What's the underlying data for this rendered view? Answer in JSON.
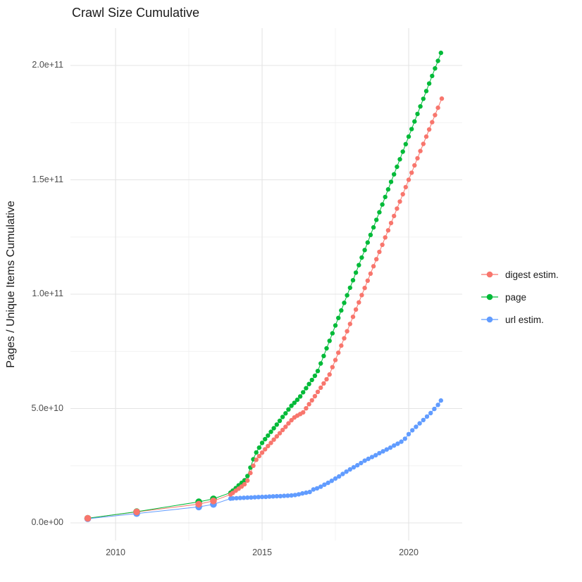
{
  "chart_data": {
    "type": "line",
    "title": "Crawl Size Cumulative",
    "ylabel": "Pages / Unique Items Cumulative",
    "xlabel": "",
    "values_unit": "billions (1e9 items)",
    "grid": true,
    "legend_position": "right",
    "xlim": [
      2008.45,
      2021.8
    ],
    "ylim_billions": [
      -8,
      216
    ],
    "x_ticks": [
      {
        "year": 2010,
        "label": "2010"
      },
      {
        "year": 2015,
        "label": "2015"
      },
      {
        "year": 2020,
        "label": "2020"
      }
    ],
    "x_minor_ticks": [
      2012.5,
      2017.5
    ],
    "y_ticks": [
      {
        "value": 0,
        "label": "0.0e+00"
      },
      {
        "value": 50,
        "label": "5.0e+10"
      },
      {
        "value": 100,
        "label": "1.0e+11"
      },
      {
        "value": 150,
        "label": "1.5e+11"
      },
      {
        "value": 200,
        "label": "2.0e+11"
      }
    ],
    "y_minor_values": [
      25,
      75,
      125,
      175
    ],
    "series": [
      {
        "name": "digest estim.",
        "color": "#F8766D",
        "points": [
          [
            2009.05,
            2
          ],
          [
            2010.72,
            4.8
          ],
          [
            2012.84,
            8.2
          ],
          [
            2013.34,
            9.6
          ],
          [
            2013.92,
            12.4
          ],
          [
            2014.0,
            13.1
          ],
          [
            2014.1,
            14.1
          ],
          [
            2014.2,
            15.0
          ],
          [
            2014.3,
            15.9
          ],
          [
            2014.4,
            16.9
          ],
          [
            2014.5,
            18.5
          ],
          [
            2014.6,
            21.8
          ],
          [
            2014.7,
            25.0
          ],
          [
            2014.8,
            27.6
          ],
          [
            2014.9,
            29.2
          ],
          [
            2015.0,
            30.7
          ],
          [
            2015.1,
            32.2
          ],
          [
            2015.2,
            33.6
          ],
          [
            2015.3,
            35.0
          ],
          [
            2015.4,
            36.4
          ],
          [
            2015.5,
            37.8
          ],
          [
            2015.6,
            39.2
          ],
          [
            2015.7,
            40.6
          ],
          [
            2015.8,
            42.0
          ],
          [
            2015.9,
            43.5
          ],
          [
            2016.0,
            44.9
          ],
          [
            2016.1,
            46.1
          ],
          [
            2016.2,
            46.9
          ],
          [
            2016.3,
            47.6
          ],
          [
            2016.4,
            48.3
          ],
          [
            2016.5,
            50.1
          ],
          [
            2016.6,
            51.9
          ],
          [
            2016.7,
            53.6
          ],
          [
            2016.8,
            55.4
          ],
          [
            2016.9,
            57.3
          ],
          [
            2017.0,
            59.1
          ],
          [
            2017.1,
            61.0
          ],
          [
            2017.2,
            62.8
          ],
          [
            2017.3,
            64.9
          ],
          [
            2017.4,
            68.1
          ],
          [
            2017.5,
            71.2
          ],
          [
            2017.6,
            74.4
          ],
          [
            2017.7,
            77.5
          ],
          [
            2017.8,
            80.7
          ],
          [
            2017.9,
            83.8
          ],
          [
            2018.0,
            87.0
          ],
          [
            2018.1,
            90.1
          ],
          [
            2018.2,
            93.3
          ],
          [
            2018.3,
            96.4
          ],
          [
            2018.4,
            99.6
          ],
          [
            2018.5,
            102.7
          ],
          [
            2018.6,
            105.9
          ],
          [
            2018.7,
            109.0
          ],
          [
            2018.8,
            112.2
          ],
          [
            2018.9,
            115.3
          ],
          [
            2019.0,
            118.5
          ],
          [
            2019.1,
            121.6
          ],
          [
            2019.2,
            124.8
          ],
          [
            2019.3,
            127.9
          ],
          [
            2019.4,
            131.1
          ],
          [
            2019.5,
            134.2
          ],
          [
            2019.6,
            137.4
          ],
          [
            2019.7,
            140.5
          ],
          [
            2019.8,
            143.7
          ],
          [
            2019.9,
            146.8
          ],
          [
            2020.0,
            150.0
          ],
          [
            2020.1,
            153.1
          ],
          [
            2020.2,
            156.3
          ],
          [
            2020.3,
            159.4
          ],
          [
            2020.4,
            162.6
          ],
          [
            2020.5,
            165.7
          ],
          [
            2020.6,
            168.9
          ],
          [
            2020.7,
            172.0
          ],
          [
            2020.8,
            175.2
          ],
          [
            2020.9,
            178.3
          ],
          [
            2021.0,
            181.5
          ],
          [
            2021.13,
            185.5
          ]
        ]
      },
      {
        "name": "page",
        "color": "#00BA38",
        "points": [
          [
            2009.05,
            2
          ],
          [
            2010.72,
            4.9
          ],
          [
            2012.84,
            9.2
          ],
          [
            2013.34,
            10.5
          ],
          [
            2013.92,
            13.2
          ],
          [
            2014.0,
            14.1
          ],
          [
            2014.1,
            15.2
          ],
          [
            2014.2,
            16.4
          ],
          [
            2014.3,
            17.5
          ],
          [
            2014.4,
            18.6
          ],
          [
            2014.5,
            20.5
          ],
          [
            2014.6,
            24.2
          ],
          [
            2014.7,
            27.8
          ],
          [
            2014.8,
            30.8
          ],
          [
            2014.9,
            32.9
          ],
          [
            2015.0,
            35.0
          ],
          [
            2015.1,
            36.6
          ],
          [
            2015.2,
            38.2
          ],
          [
            2015.3,
            39.8
          ],
          [
            2015.4,
            41.4
          ],
          [
            2015.5,
            43.0
          ],
          [
            2015.6,
            44.6
          ],
          [
            2015.7,
            46.3
          ],
          [
            2015.8,
            47.9
          ],
          [
            2015.9,
            49.6
          ],
          [
            2016.0,
            51.2
          ],
          [
            2016.1,
            52.5
          ],
          [
            2016.2,
            53.8
          ],
          [
            2016.3,
            55.3
          ],
          [
            2016.4,
            57.1
          ],
          [
            2016.5,
            58.9
          ],
          [
            2016.6,
            60.7
          ],
          [
            2016.7,
            62.5
          ],
          [
            2016.8,
            64.3
          ],
          [
            2016.9,
            66.4
          ],
          [
            2017.0,
            69.7
          ],
          [
            2017.1,
            73.0
          ],
          [
            2017.2,
            76.3
          ],
          [
            2017.3,
            79.6
          ],
          [
            2017.4,
            82.9
          ],
          [
            2017.5,
            86.3
          ],
          [
            2017.6,
            89.6
          ],
          [
            2017.7,
            92.9
          ],
          [
            2017.8,
            96.2
          ],
          [
            2017.9,
            99.5
          ],
          [
            2018.0,
            102.8
          ],
          [
            2018.1,
            106.1
          ],
          [
            2018.2,
            109.4
          ],
          [
            2018.3,
            112.7
          ],
          [
            2018.4,
            116.0
          ],
          [
            2018.5,
            119.3
          ],
          [
            2018.6,
            122.6
          ],
          [
            2018.7,
            125.9
          ],
          [
            2018.8,
            129.2
          ],
          [
            2018.9,
            132.5
          ],
          [
            2019.0,
            135.8
          ],
          [
            2019.1,
            139.2
          ],
          [
            2019.2,
            142.5
          ],
          [
            2019.3,
            145.8
          ],
          [
            2019.4,
            149.1
          ],
          [
            2019.5,
            152.4
          ],
          [
            2019.6,
            155.7
          ],
          [
            2019.7,
            159.0
          ],
          [
            2019.8,
            162.3
          ],
          [
            2019.9,
            165.6
          ],
          [
            2020.0,
            168.9
          ],
          [
            2020.1,
            172.2
          ],
          [
            2020.2,
            175.5
          ],
          [
            2020.3,
            178.8
          ],
          [
            2020.4,
            182.1
          ],
          [
            2020.5,
            185.4
          ],
          [
            2020.6,
            188.8
          ],
          [
            2020.7,
            192.1
          ],
          [
            2020.8,
            195.4
          ],
          [
            2020.9,
            198.7
          ],
          [
            2021.0,
            202.0
          ],
          [
            2021.1,
            205.5
          ]
        ]
      },
      {
        "name": "url estim.",
        "color": "#619CFF",
        "points": [
          [
            2009.05,
            1.8
          ],
          [
            2010.72,
            4.1
          ],
          [
            2012.84,
            7.0
          ],
          [
            2013.34,
            8.1
          ],
          [
            2013.92,
            10.6
          ],
          [
            2014.0,
            10.7
          ],
          [
            2014.125,
            10.8
          ],
          [
            2014.25,
            10.9
          ],
          [
            2014.375,
            11.0
          ],
          [
            2014.5,
            11.05
          ],
          [
            2014.625,
            11.1
          ],
          [
            2014.75,
            11.2
          ],
          [
            2014.875,
            11.3
          ],
          [
            2015.0,
            11.35
          ],
          [
            2015.125,
            11.4
          ],
          [
            2015.25,
            11.5
          ],
          [
            2015.375,
            11.6
          ],
          [
            2015.5,
            11.65
          ],
          [
            2015.625,
            11.7
          ],
          [
            2015.75,
            11.8
          ],
          [
            2015.875,
            11.9
          ],
          [
            2016.0,
            12.0
          ],
          [
            2016.125,
            12.2
          ],
          [
            2016.25,
            12.5
          ],
          [
            2016.375,
            12.9
          ],
          [
            2016.5,
            13.2
          ],
          [
            2016.625,
            13.5
          ],
          [
            2016.75,
            14.6
          ],
          [
            2016.875,
            15.1
          ],
          [
            2017.0,
            15.8
          ],
          [
            2017.125,
            16.7
          ],
          [
            2017.25,
            17.5
          ],
          [
            2017.375,
            18.4
          ],
          [
            2017.5,
            19.4
          ],
          [
            2017.625,
            20.3
          ],
          [
            2017.75,
            21.4
          ],
          [
            2017.875,
            22.4
          ],
          [
            2018.0,
            23.4
          ],
          [
            2018.125,
            24.3
          ],
          [
            2018.25,
            25.2
          ],
          [
            2018.375,
            26.2
          ],
          [
            2018.5,
            27.2
          ],
          [
            2018.625,
            28.0
          ],
          [
            2018.75,
            28.8
          ],
          [
            2018.875,
            29.6
          ],
          [
            2019.0,
            30.5
          ],
          [
            2019.125,
            31.3
          ],
          [
            2019.25,
            32.1
          ],
          [
            2019.375,
            32.9
          ],
          [
            2019.5,
            33.8
          ],
          [
            2019.625,
            34.6
          ],
          [
            2019.75,
            35.5
          ],
          [
            2019.875,
            36.8
          ],
          [
            2020.0,
            38.8
          ],
          [
            2020.125,
            40.5
          ],
          [
            2020.25,
            42.0
          ],
          [
            2020.375,
            43.5
          ],
          [
            2020.5,
            45.0
          ],
          [
            2020.625,
            46.5
          ],
          [
            2020.75,
            48.0
          ],
          [
            2020.875,
            49.8
          ],
          [
            2021.0,
            51.6
          ],
          [
            2021.1,
            53.5
          ]
        ]
      }
    ]
  }
}
